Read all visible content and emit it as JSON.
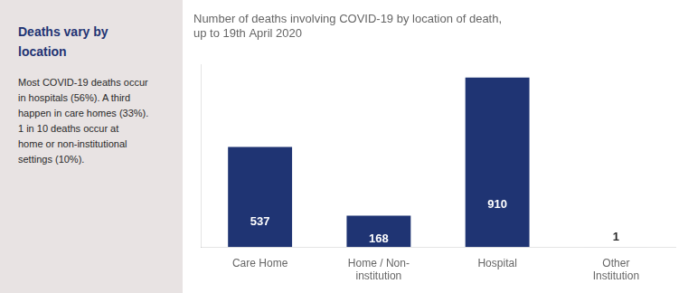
{
  "chart_data": {
    "type": "bar",
    "title": "Number of deaths involving COVID-19 by location of death,\nup to 19th April 2020",
    "annotations": [
      "Deaths vary by\nlocation",
      "Most COVID-19 deaths occur\nin hospitals (56%). A third\nhappen in care homes (33%).\n1 in 10 deaths  occur at\nhome or non-institutional\nsettings (10%)."
    ],
    "categories": [
      "Care Home",
      "Home / Non-\ninstitution",
      "Hospital",
      "Other\nInstitution"
    ],
    "values": [
      537,
      168,
      910,
      1
    ],
    "colors": [
      "#1F3473",
      "#1F3473",
      "#1F3473",
      "#B8BFCF"
    ],
    "ylim": [
      0,
      980
    ],
    "grid": false,
    "data_labels": true,
    "tick_labels": "x"
  }
}
